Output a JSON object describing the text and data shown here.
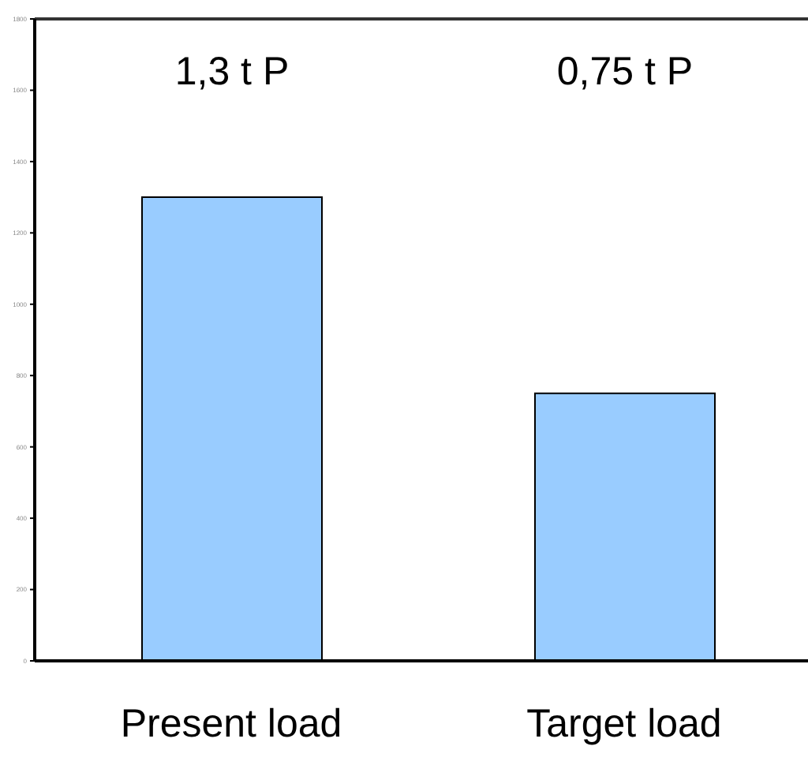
{
  "chart_data": {
    "type": "bar",
    "categories": [
      "Present load",
      "Target load"
    ],
    "values": [
      1300,
      750
    ],
    "color": "#99ccff",
    "annotations": [
      "1,3 t P",
      "0,75 t P"
    ],
    "ylim": [
      0,
      1800
    ],
    "yticks": [
      0,
      200,
      400,
      600,
      800,
      1000,
      1200,
      1400,
      1600,
      1800
    ],
    "grid": false,
    "legend": false
  }
}
